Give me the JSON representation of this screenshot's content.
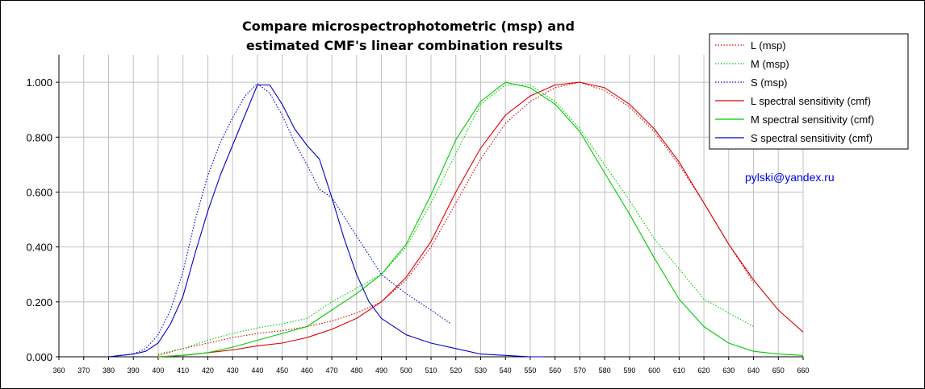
{
  "chart_data": {
    "type": "line",
    "title": [
      "Compare microspectrophotometric (msp) and",
      "estimated CMF's linear combination results"
    ],
    "xlabel": "",
    "ylabel": "",
    "xlim": [
      360,
      660
    ],
    "ylim": [
      0,
      1.1
    ],
    "x_ticks": [
      "360",
      "370",
      "380",
      "390",
      "400",
      "410",
      "420",
      "430",
      "440",
      "450",
      "460",
      "470",
      "480",
      "490",
      "500",
      "510",
      "520",
      "530",
      "540",
      "550",
      "560",
      "570",
      "580",
      "590",
      "600",
      "610",
      "620",
      "630",
      "640",
      "650",
      "660"
    ],
    "y_ticks": [
      "0.000",
      "0.200",
      "0.400",
      "0.600",
      "0.800",
      "1.000"
    ],
    "grid": true,
    "legend_position": "top-right",
    "annotation": "pylski@yandex.ru",
    "series": [
      {
        "name": "L (msp)",
        "color": "#dd0000",
        "style": "dotted",
        "x": [
          400,
          410,
          420,
          430,
          440,
          450,
          460,
          470,
          480,
          490,
          500,
          510,
          520,
          530,
          540,
          550,
          560,
          570,
          580,
          590,
          600,
          610,
          620,
          630,
          640
        ],
        "y": [
          0.005,
          0.03,
          0.05,
          0.07,
          0.085,
          0.095,
          0.11,
          0.13,
          0.16,
          0.2,
          0.28,
          0.4,
          0.56,
          0.72,
          0.85,
          0.93,
          0.98,
          1.0,
          0.97,
          0.91,
          0.82,
          0.7,
          0.56,
          0.41,
          0.27
        ]
      },
      {
        "name": "M (msp)",
        "color": "#00cc00",
        "style": "dotted",
        "x": [
          400,
          410,
          420,
          430,
          440,
          450,
          460,
          470,
          480,
          490,
          500,
          510,
          520,
          530,
          540,
          550,
          560,
          570,
          580,
          590,
          600,
          610,
          620,
          630,
          640
        ],
        "y": [
          0.01,
          0.03,
          0.06,
          0.085,
          0.105,
          0.12,
          0.14,
          0.2,
          0.25,
          0.3,
          0.4,
          0.56,
          0.74,
          0.92,
          0.99,
          0.99,
          0.93,
          0.83,
          0.7,
          0.57,
          0.43,
          0.32,
          0.21,
          0.16,
          0.11
        ]
      },
      {
        "name": "S (msp)",
        "color": "#0000cc",
        "style": "dotted",
        "x": [
          380,
          385,
          390,
          395,
          400,
          405,
          410,
          415,
          420,
          425,
          430,
          435,
          440,
          445,
          450,
          455,
          460,
          465,
          470,
          480,
          490,
          500,
          510,
          518
        ],
        "y": [
          0.0,
          0.005,
          0.01,
          0.03,
          0.08,
          0.17,
          0.31,
          0.5,
          0.66,
          0.78,
          0.87,
          0.95,
          0.995,
          0.96,
          0.88,
          0.78,
          0.7,
          0.61,
          0.58,
          0.44,
          0.3,
          0.23,
          0.17,
          0.12
        ]
      },
      {
        "name": "L spectral sensitivity (cmf)",
        "color": "#dd0000",
        "style": "solid",
        "x": [
          400,
          410,
          420,
          430,
          440,
          450,
          460,
          470,
          480,
          490,
          500,
          510,
          520,
          530,
          540,
          550,
          560,
          570,
          580,
          590,
          600,
          610,
          620,
          630,
          640,
          650,
          660
        ],
        "y": [
          0.0,
          0.005,
          0.015,
          0.025,
          0.04,
          0.05,
          0.07,
          0.1,
          0.14,
          0.2,
          0.29,
          0.42,
          0.6,
          0.76,
          0.88,
          0.95,
          0.99,
          1.0,
          0.98,
          0.92,
          0.83,
          0.71,
          0.56,
          0.41,
          0.28,
          0.17,
          0.09
        ]
      },
      {
        "name": "M spectral sensitivity (cmf)",
        "color": "#00cc00",
        "style": "solid",
        "x": [
          400,
          410,
          420,
          430,
          440,
          450,
          460,
          470,
          480,
          490,
          500,
          510,
          520,
          530,
          540,
          550,
          560,
          570,
          580,
          590,
          600,
          610,
          620,
          630,
          640,
          650,
          660
        ],
        "y": [
          0.0,
          0.005,
          0.015,
          0.035,
          0.06,
          0.085,
          0.11,
          0.17,
          0.23,
          0.3,
          0.41,
          0.59,
          0.79,
          0.93,
          1.0,
          0.98,
          0.92,
          0.82,
          0.67,
          0.52,
          0.36,
          0.21,
          0.11,
          0.05,
          0.02,
          0.01,
          0.005
        ]
      },
      {
        "name": "S spectral sensitivity (cmf)",
        "color": "#0000cc",
        "style": "solid",
        "x": [
          380,
          385,
          390,
          395,
          400,
          405,
          410,
          415,
          420,
          425,
          430,
          435,
          440,
          445,
          450,
          455,
          460,
          465,
          470,
          475,
          480,
          485,
          490,
          500,
          510,
          520,
          530,
          540,
          550,
          555
        ],
        "y": [
          0.0,
          0.005,
          0.01,
          0.02,
          0.05,
          0.12,
          0.22,
          0.38,
          0.53,
          0.66,
          0.77,
          0.88,
          0.99,
          0.99,
          0.92,
          0.83,
          0.77,
          0.72,
          0.58,
          0.43,
          0.3,
          0.2,
          0.14,
          0.08,
          0.05,
          0.03,
          0.01,
          0.005,
          0.0,
          0.0
        ]
      }
    ]
  }
}
